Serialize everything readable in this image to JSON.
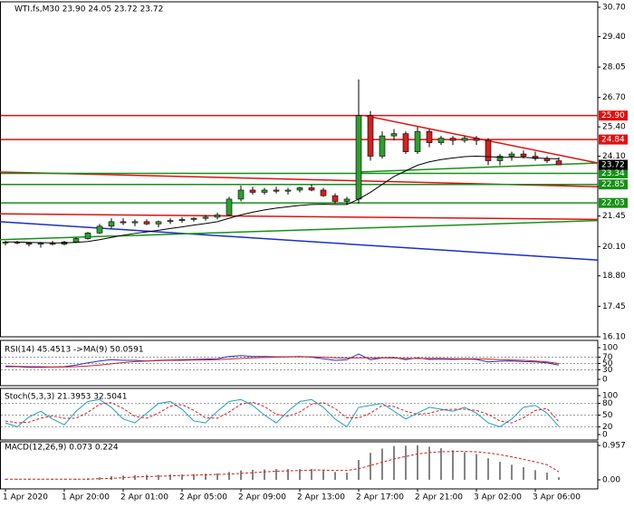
{
  "chart_data": [
    {
      "type": "candlestick",
      "title": "WTI.fs,M30  23.90 24.05 23.72 23.72",
      "categories": [
        "1 Apr 2020",
        null,
        null,
        null,
        null,
        "1 Apr 20:00",
        null,
        null,
        null,
        null,
        "2 Apr 01:00",
        null,
        null,
        null,
        null,
        "2 Apr 05:00",
        null,
        null,
        null,
        null,
        "2 Apr 09:00",
        null,
        null,
        null,
        null,
        "2 Apr 13:00",
        null,
        null,
        null,
        null,
        "2 Apr 17:00",
        null,
        null,
        null,
        null,
        "2 Apr 21:00",
        null,
        null,
        null,
        null,
        "3 Apr 02:00",
        null,
        null,
        null,
        null,
        "3 Apr 06:00",
        null,
        null
      ],
      "open": [
        20.25,
        20.3,
        20.25,
        20.2,
        20.25,
        20.2,
        20.3,
        20.45,
        20.7,
        21.0,
        21.2,
        21.15,
        21.2,
        21.1,
        21.2,
        21.25,
        21.3,
        21.35,
        21.4,
        21.5,
        22.2,
        22.6,
        22.5,
        22.6,
        22.55,
        22.6,
        22.7,
        22.6,
        22.35,
        22.1,
        22.2,
        25.9,
        24.1,
        25.0,
        25.1,
        24.3,
        25.2,
        24.7,
        24.9,
        24.8,
        24.9,
        24.8,
        23.9,
        24.1,
        24.2,
        24.1,
        24.0,
        23.9
      ],
      "high": [
        20.35,
        20.35,
        20.3,
        20.3,
        20.35,
        20.35,
        20.5,
        20.75,
        21.1,
        21.35,
        21.35,
        21.3,
        21.3,
        21.25,
        21.35,
        21.4,
        21.4,
        21.5,
        21.6,
        22.3,
        22.8,
        22.75,
        22.7,
        22.75,
        22.7,
        22.75,
        22.85,
        22.7,
        22.45,
        22.3,
        27.5,
        26.1,
        25.2,
        25.3,
        25.2,
        25.4,
        25.3,
        25.0,
        25.0,
        25.0,
        25.0,
        24.9,
        24.2,
        24.3,
        24.35,
        24.3,
        24.1,
        24.05
      ],
      "low": [
        20.15,
        20.2,
        20.1,
        20.05,
        20.15,
        20.15,
        20.25,
        20.4,
        20.65,
        20.9,
        21.05,
        21.0,
        21.05,
        20.95,
        21.1,
        21.15,
        21.2,
        21.25,
        21.3,
        21.45,
        22.1,
        22.4,
        22.4,
        22.45,
        22.4,
        22.5,
        22.55,
        22.3,
        22.0,
        21.95,
        22.0,
        23.9,
        24.0,
        24.8,
        24.2,
        24.2,
        24.5,
        24.6,
        24.6,
        24.7,
        24.6,
        23.7,
        23.7,
        23.9,
        24.0,
        23.9,
        23.8,
        23.72
      ],
      "close": [
        20.3,
        20.25,
        20.2,
        20.25,
        20.2,
        20.3,
        20.45,
        20.7,
        21.0,
        21.2,
        21.15,
        21.2,
        21.1,
        21.2,
        21.25,
        21.3,
        21.35,
        21.4,
        21.5,
        22.2,
        22.6,
        22.5,
        22.6,
        22.55,
        22.6,
        22.7,
        22.6,
        22.35,
        22.1,
        22.2,
        25.9,
        24.1,
        25.0,
        25.1,
        24.3,
        25.2,
        24.7,
        24.9,
        24.8,
        24.9,
        24.8,
        23.9,
        24.1,
        24.2,
        24.1,
        24.0,
        23.9,
        23.72
      ],
      "up_color": "#2e9e2e",
      "down_color": "#d42020",
      "ma": {
        "color": "#000000",
        "values": [
          20.3,
          20.3,
          20.28,
          20.27,
          20.26,
          20.26,
          20.28,
          20.32,
          20.4,
          20.5,
          20.6,
          20.68,
          20.75,
          20.82,
          20.9,
          20.97,
          21.05,
          21.12,
          21.2,
          21.35,
          21.5,
          21.62,
          21.72,
          21.8,
          21.86,
          21.92,
          21.96,
          21.97,
          21.96,
          21.96,
          22.2,
          22.5,
          22.85,
          23.2,
          23.45,
          23.7,
          23.85,
          23.95,
          24.02,
          24.08,
          24.1,
          24.08,
          24.05,
          24.05,
          24.05,
          24.02,
          24.0,
          23.98
        ]
      },
      "ylim": [
        16.1,
        30.7
      ],
      "yticks": [
        {
          "value": 30.7,
          "label": "30.70"
        },
        {
          "value": 29.4,
          "label": "29.40"
        },
        {
          "value": 28.05,
          "label": "28.05"
        },
        {
          "value": 26.7,
          "label": "26.70"
        },
        {
          "value": 25.4,
          "label": "25.40"
        },
        {
          "value": 24.1,
          "label": "24.10"
        },
        {
          "value": 22.75,
          "label": "22.75"
        },
        {
          "value": 21.45,
          "label": "21.45"
        },
        {
          "value": 20.1,
          "label": "20.10"
        },
        {
          "value": 18.8,
          "label": "18.80"
        },
        {
          "value": 17.45,
          "label": "17.45"
        },
        {
          "value": 16.1,
          "label": "16.10"
        }
      ],
      "levels": [
        {
          "value": 25.9,
          "label": "25.90",
          "color": "#e01010"
        },
        {
          "value": 24.84,
          "label": "24.84",
          "color": "#e01010"
        },
        {
          "value": 23.34,
          "label": "23.34",
          "color": "#169116"
        },
        {
          "value": 22.85,
          "label": "22.85",
          "color": "#169116"
        },
        {
          "value": 22.03,
          "label": "22.03",
          "color": "#169116"
        }
      ],
      "current": {
        "value": 23.72,
        "label": "23.72",
        "color": "#000000"
      },
      "trendlines": [
        {
          "color": "#e01010",
          "x": [
            -0.5,
            50.3
          ],
          "y": [
            23.4,
            22.75
          ]
        },
        {
          "color": "#e01010",
          "x": [
            -0.5,
            50.3
          ],
          "y": [
            21.55,
            21.3
          ]
        },
        {
          "color": "#1a2fc8",
          "x": [
            -0.5,
            50.3
          ],
          "y": [
            21.2,
            19.5
          ]
        },
        {
          "color": "#169116",
          "x": [
            -0.5,
            50.3
          ],
          "y": [
            20.4,
            21.25
          ]
        },
        {
          "color": "#169116",
          "x": [
            30,
            50.3
          ],
          "y": [
            23.4,
            23.8
          ]
        },
        {
          "color": "#e01010",
          "x": [
            30.5,
            50.3
          ],
          "y": [
            25.9,
            23.8
          ]
        }
      ]
    },
    {
      "type": "line",
      "title": "RSI(14) 45.4513  ->MA(9) 50.0591",
      "series": [
        {
          "color": "#2a2ad0",
          "dash": false,
          "values": [
            40,
            40,
            38,
            38,
            39,
            40,
            45,
            52,
            58,
            62,
            60,
            60,
            58,
            60,
            61,
            62,
            63,
            64,
            65,
            72,
            75,
            72,
            72,
            71,
            71,
            72,
            70,
            65,
            60,
            62,
            80,
            62,
            68,
            69,
            62,
            68,
            63,
            64,
            63,
            64,
            63,
            55,
            57,
            58,
            56,
            55,
            52,
            45
          ]
        },
        {
          "color": "#d02020",
          "dash": false,
          "values": [
            42,
            41,
            40,
            40,
            39,
            39,
            40,
            42,
            45,
            49,
            53,
            56,
            58,
            59,
            60,
            60,
            61,
            61,
            62,
            64,
            66,
            68,
            69,
            70,
            71,
            71,
            71,
            70,
            68,
            67,
            68,
            68,
            68,
            67,
            66,
            66,
            66,
            66,
            65,
            65,
            65,
            64,
            62,
            61,
            60,
            58,
            55,
            50
          ]
        }
      ],
      "ylim": [
        0,
        100
      ],
      "yticks": [
        100,
        70,
        50,
        30,
        0
      ]
    },
    {
      "type": "line",
      "title": "Stoch(5,3,3) 21.3953 32.5041",
      "series": [
        {
          "color": "#20a0c0",
          "dash": false,
          "values": [
            30,
            20,
            45,
            60,
            40,
            25,
            60,
            85,
            90,
            70,
            40,
            30,
            55,
            80,
            85,
            65,
            35,
            30,
            60,
            85,
            90,
            75,
            50,
            30,
            60,
            85,
            90,
            70,
            40,
            20,
            70,
            75,
            80,
            60,
            40,
            55,
            70,
            65,
            60,
            70,
            55,
            30,
            20,
            40,
            70,
            75,
            55,
            21
          ]
        },
        {
          "color": "#d02020",
          "dash": true,
          "values": [
            35,
            30,
            32,
            42,
            48,
            42,
            42,
            57,
            78,
            82,
            67,
            47,
            42,
            55,
            73,
            77,
            62,
            43,
            42,
            58,
            78,
            83,
            72,
            52,
            47,
            58,
            78,
            82,
            67,
            43,
            43,
            55,
            75,
            72,
            60,
            52,
            55,
            63,
            65,
            65,
            62,
            52,
            35,
            30,
            43,
            62,
            67,
            33
          ]
        }
      ],
      "ylim": [
        0,
        100
      ],
      "yticks": [
        100,
        80,
        50,
        20,
        0
      ]
    },
    {
      "type": "bar",
      "title": "MACD(12,26,9) 0.073 0.224",
      "color": "#333333",
      "values": [
        0.02,
        0.02,
        0.01,
        0.01,
        0.01,
        0.01,
        0.02,
        0.04,
        0.07,
        0.1,
        0.12,
        0.13,
        0.14,
        0.14,
        0.15,
        0.15,
        0.16,
        0.17,
        0.18,
        0.22,
        0.26,
        0.28,
        0.29,
        0.3,
        0.3,
        0.3,
        0.3,
        0.27,
        0.22,
        0.2,
        0.55,
        0.75,
        0.87,
        0.94,
        0.95,
        0.96,
        0.92,
        0.88,
        0.82,
        0.77,
        0.72,
        0.6,
        0.5,
        0.42,
        0.35,
        0.27,
        0.2,
        0.073
      ],
      "series": [
        {
          "color": "#d02020",
          "dash": true,
          "values": [
            0.02,
            0.02,
            0.02,
            0.02,
            0.02,
            0.02,
            0.02,
            0.02,
            0.03,
            0.04,
            0.06,
            0.08,
            0.09,
            0.1,
            0.11,
            0.12,
            0.13,
            0.14,
            0.15,
            0.16,
            0.18,
            0.2,
            0.22,
            0.24,
            0.25,
            0.26,
            0.27,
            0.27,
            0.26,
            0.26,
            0.31,
            0.4,
            0.49,
            0.58,
            0.65,
            0.72,
            0.76,
            0.78,
            0.79,
            0.79,
            0.78,
            0.75,
            0.7,
            0.64,
            0.57,
            0.5,
            0.42,
            0.224
          ]
        }
      ],
      "ylim": [
        0,
        0.957
      ],
      "yticks": [
        0.957,
        {
          "value": 0,
          "label": "0.00"
        }
      ]
    }
  ]
}
